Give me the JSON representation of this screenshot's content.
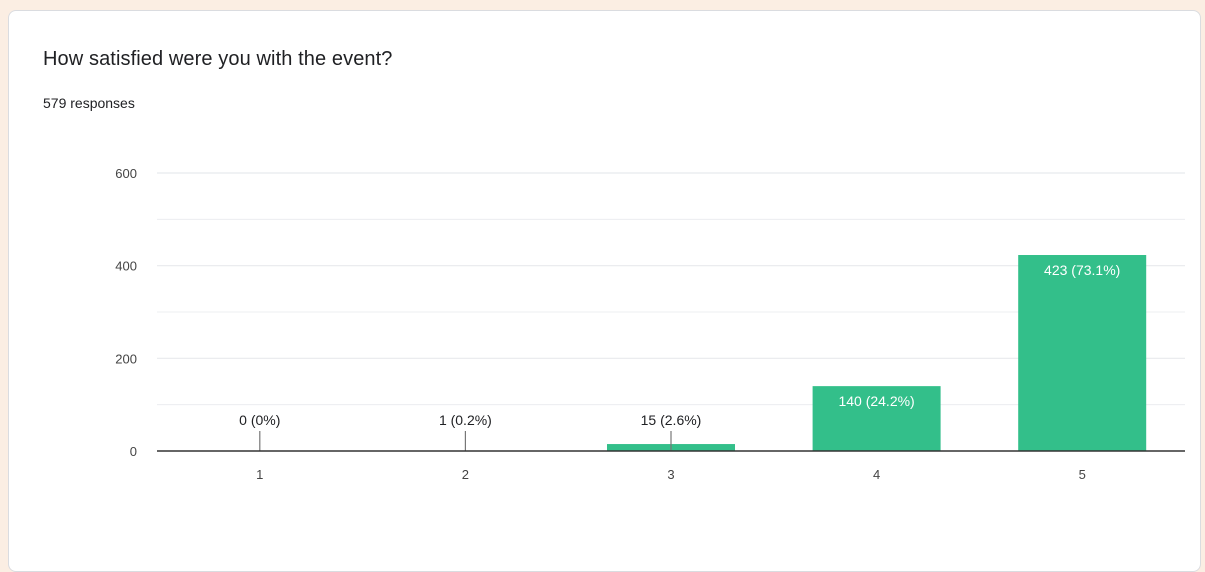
{
  "question": {
    "title": "How satisfied were you with the event?",
    "responses": "579 responses"
  },
  "colors": {
    "bar": "#33bf8a",
    "grid": "#e8eaed",
    "axis": "#333333",
    "label_outside": "#202124",
    "label_inside": "#ffffff"
  },
  "chart_data": {
    "type": "bar",
    "title": "",
    "xlabel": "",
    "ylabel": "",
    "categories": [
      "1",
      "2",
      "3",
      "4",
      "5"
    ],
    "values": [
      0,
      1,
      15,
      140,
      423
    ],
    "data_labels": [
      "0 (0%)",
      "1 (0.2%)",
      "15 (2.6%)",
      "140 (24.2%)",
      "423 (73.1%)"
    ],
    "ylim": [
      0,
      600
    ],
    "yticks": [
      0,
      200,
      400,
      600
    ],
    "grid": true,
    "legend": "none"
  }
}
